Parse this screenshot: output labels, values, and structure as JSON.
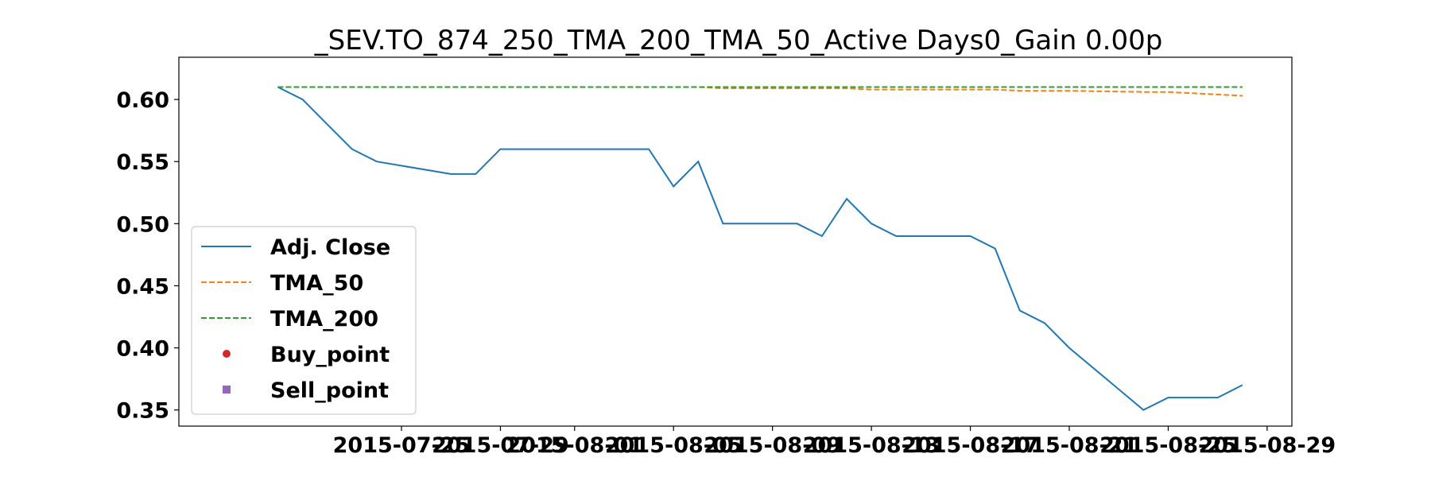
{
  "chart_data": {
    "type": "line",
    "title": "_SEV.TO_874_250_TMA_200_TMA_50_Active Days0_Gain   0.00p",
    "xlabel": "",
    "ylabel": "",
    "x": [
      "2015-07-20",
      "2015-07-21",
      "2015-07-22",
      "2015-07-23",
      "2015-07-24",
      "2015-07-27",
      "2015-07-28",
      "2015-07-29",
      "2015-07-30",
      "2015-07-31",
      "2015-08-03",
      "2015-08-04",
      "2015-08-05",
      "2015-08-06",
      "2015-08-07",
      "2015-08-10",
      "2015-08-11",
      "2015-08-12",
      "2015-08-13",
      "2015-08-14",
      "2015-08-17",
      "2015-08-18",
      "2015-08-19",
      "2015-08-20",
      "2015-08-21",
      "2015-08-24",
      "2015-08-25",
      "2015-08-26",
      "2015-08-27",
      "2015-08-28"
    ],
    "series": [
      {
        "name": "Adj. Close",
        "color": "#1f77b4",
        "style": "solid",
        "values": [
          0.61,
          0.6,
          0.58,
          0.56,
          0.55,
          0.54,
          0.54,
          0.56,
          0.56,
          0.56,
          0.56,
          0.56,
          0.53,
          0.55,
          0.5,
          0.5,
          0.49,
          0.52,
          0.5,
          0.49,
          0.49,
          0.48,
          0.43,
          0.42,
          0.4,
          0.35,
          0.36,
          0.36,
          0.36,
          0.37
        ]
      },
      {
        "name": "TMA_50",
        "color": "#ff7f0e",
        "style": "dashed",
        "values": [
          0.61,
          0.61,
          0.61,
          0.61,
          0.61,
          0.61,
          0.61,
          0.61,
          0.61,
          0.61,
          0.61,
          0.61,
          0.61,
          0.61,
          0.609,
          0.609,
          0.609,
          0.609,
          0.608,
          0.608,
          0.608,
          0.608,
          0.607,
          0.607,
          0.607,
          0.606,
          0.606,
          0.605,
          0.604,
          0.603
        ]
      },
      {
        "name": "TMA_200",
        "color": "#2ca02c",
        "style": "dashed",
        "values": [
          0.61,
          0.61,
          0.61,
          0.61,
          0.61,
          0.61,
          0.61,
          0.61,
          0.61,
          0.61,
          0.61,
          0.61,
          0.61,
          0.61,
          0.61,
          0.61,
          0.61,
          0.61,
          0.61,
          0.61,
          0.61,
          0.61,
          0.61,
          0.61,
          0.61,
          0.61,
          0.61,
          0.61,
          0.61,
          0.61
        ]
      }
    ],
    "markers": [
      {
        "name": "Buy_point",
        "color": "#d62728",
        "shape": "circle",
        "values": []
      },
      {
        "name": "Sell_point",
        "color": "#9467bd",
        "shape": "square",
        "values": []
      }
    ],
    "x_ticks": [
      "2015-07-25",
      "2015-07-29",
      "2015-08-01",
      "2015-08-05",
      "2015-08-09",
      "2015-08-13",
      "2015-08-17",
      "2015-08-21",
      "2015-08-25",
      "2015-08-29"
    ],
    "x_tick_labels": [
      "2015-07-25",
      "2015-07-29",
      "2015-08-01",
      "2015-08-05",
      "2015-08-09",
      "2015-08-13",
      "2015-08-17",
      "2015-08-21",
      "2015-08-25",
      "2015-08-29"
    ],
    "y_ticks": [
      0.35,
      0.4,
      0.45,
      0.5,
      0.55,
      0.6
    ],
    "y_tick_labels": [
      "0.35",
      "0.40",
      "0.45",
      "0.50",
      "0.55",
      "0.60"
    ],
    "xlim": [
      "2015-07-16",
      "2015-08-30"
    ],
    "ylim": [
      0.337,
      0.634
    ],
    "grid": false,
    "legend_position": "lower-left"
  }
}
